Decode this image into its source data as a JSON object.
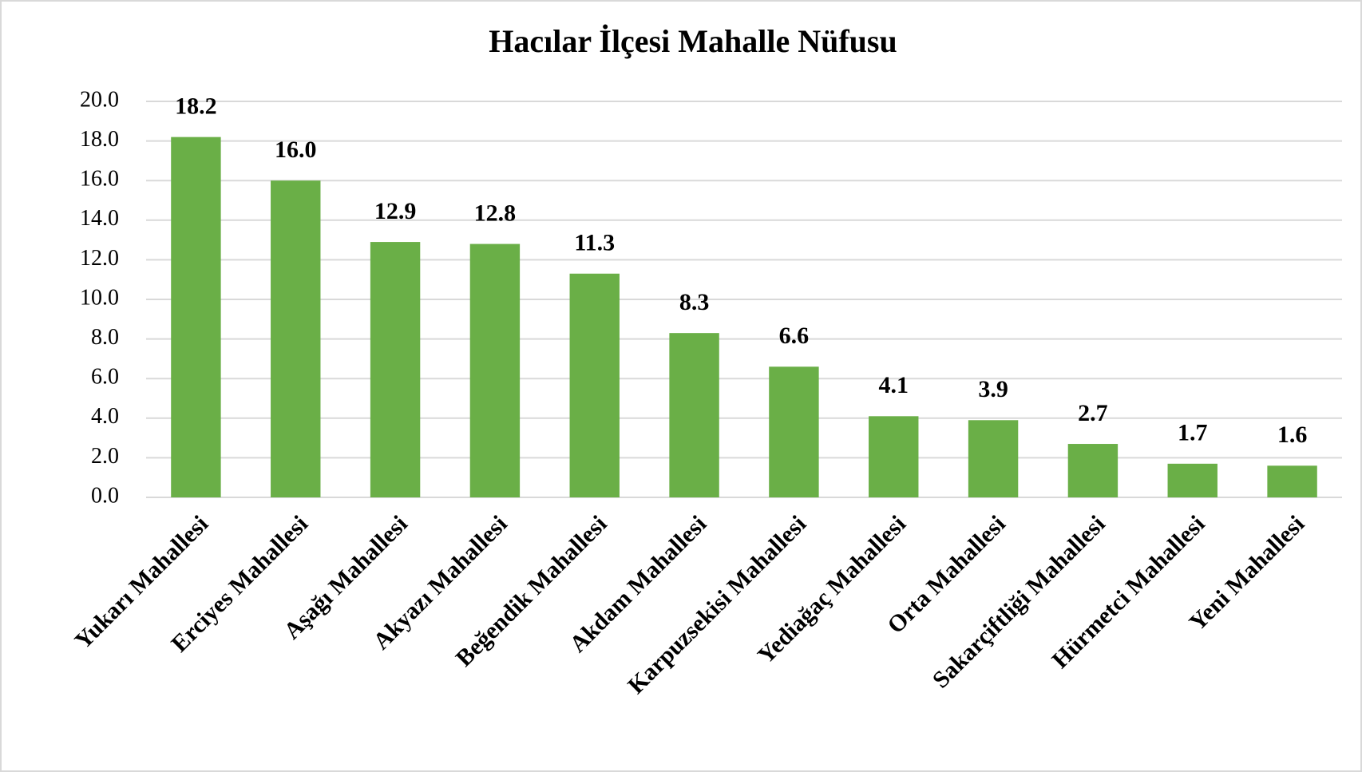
{
  "chart_data": {
    "type": "bar",
    "title": "Hacılar İlçesi Mahalle Nüfusu",
    "categories": [
      "Yukarı Mahallesi",
      "Erciyes Mahallesi",
      "Aşağı Mahallesi",
      "Akyazı Mahallesi",
      "Beğendik Mahallesi",
      "Akdam Mahallesi",
      "Karpuzsekisi Mahallesi",
      "Yediağaç Mahallesi",
      "Orta Mahallesi",
      "Sakarçiftliği Mahallesi",
      "Hürmetci Mahallesi",
      "Yeni Mahallesi"
    ],
    "values": [
      18.2,
      16.0,
      12.9,
      12.8,
      11.3,
      8.3,
      6.6,
      4.1,
      3.9,
      2.7,
      1.7,
      1.6
    ],
    "value_labels": [
      "18.2",
      "16.0",
      "12.9",
      "12.8",
      "11.3",
      "8.3",
      "6.6",
      "4.1",
      "3.9",
      "2.7",
      "1.7",
      "1.6"
    ],
    "color": "#6aaf47",
    "ylim": [
      0,
      20
    ],
    "yticks": [
      {
        "value": 0,
        "label": "0.0"
      },
      {
        "value": 2,
        "label": "2.0"
      },
      {
        "value": 4,
        "label": "4.0"
      },
      {
        "value": 6,
        "label": "6.0"
      },
      {
        "value": 8,
        "label": "8.0"
      },
      {
        "value": 10,
        "label": "10.0"
      },
      {
        "value": 12,
        "label": "12.0"
      },
      {
        "value": 14,
        "label": "14.0"
      },
      {
        "value": 16,
        "label": "16.0"
      },
      {
        "value": 18,
        "label": "18.0"
      },
      {
        "value": 20,
        "label": "20.0"
      }
    ],
    "grid": true
  }
}
